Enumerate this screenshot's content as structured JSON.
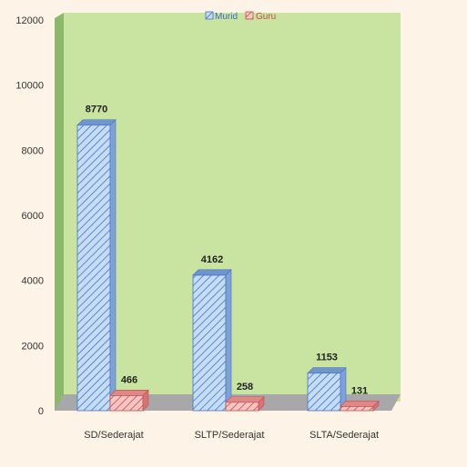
{
  "chart_data": {
    "type": "bar",
    "categories": [
      "SD/Sederajat",
      "SLTP/Sederajat",
      "SLTA/Sederajat"
    ],
    "series": [
      {
        "name": "Murid",
        "values": [
          8770,
          4162,
          1153
        ],
        "labels": [
          "8770",
          "4162",
          "1153"
        ],
        "color": "#bcd6f3",
        "stroke": "#4472c4"
      },
      {
        "name": "Guru",
        "values": [
          466,
          258,
          131
        ],
        "labels": [
          "466",
          "258",
          "131"
        ],
        "color": "#f4a6a6",
        "stroke": "#c0504d"
      }
    ],
    "ylim": [
      0,
      12000
    ],
    "yticks": [
      "0",
      "2000",
      "4000",
      "6000",
      "8000",
      "10000",
      "12000"
    ],
    "ytick_values": [
      0,
      2000,
      4000,
      6000,
      8000,
      10000,
      12000
    ],
    "title": "",
    "xlabel": "",
    "ylabel": "",
    "legend_position": "top-center",
    "grid": false,
    "plot_background": "#c9e3a0",
    "floor_color": "#a8a8a8",
    "side_wall_color": "#8cb86a"
  }
}
